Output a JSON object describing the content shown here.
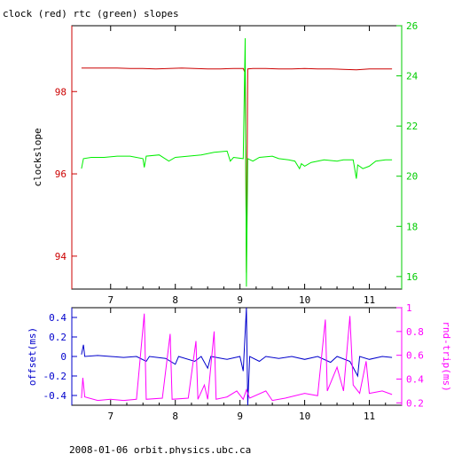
{
  "title": "clock (red) rtc (green) slopes",
  "footer": "2008-01-06 orbit.physics.ubc.ca",
  "colors": {
    "clock": "#cc0000",
    "rtc": "#00ee00",
    "offset": "#0000cc",
    "rndtrip": "#ff00ff",
    "axis": "#000000",
    "left_axis_top": "#cc0000",
    "right_axis_top": "#00cc00",
    "left_axis_bottom": "#0000cc",
    "right_axis_bottom": "#ff00ff"
  },
  "chart_data": [
    {
      "type": "line",
      "title": "clock (red) rtc (green) slopes",
      "xlabel": "",
      "ylabel": "clockslope",
      "y2label": "",
      "xlim": [
        6.4,
        11.5
      ],
      "ylim": [
        93.2,
        99.6
      ],
      "y2lim": [
        15.5,
        26.0
      ],
      "xticks": [
        7,
        8,
        9,
        10,
        11
      ],
      "yticks": [
        94,
        96,
        98
      ],
      "y2ticks": [
        16,
        18,
        20,
        22,
        24,
        26
      ],
      "series": [
        {
          "name": "clock",
          "axis": "left",
          "points": [
            [
              6.55,
              98.57
            ],
            [
              6.7,
              98.57
            ],
            [
              6.9,
              98.57
            ],
            [
              7.1,
              98.57
            ],
            [
              7.3,
              98.56
            ],
            [
              7.5,
              98.56
            ],
            [
              7.7,
              98.55
            ],
            [
              7.9,
              98.56
            ],
            [
              8.1,
              98.57
            ],
            [
              8.3,
              98.56
            ],
            [
              8.5,
              98.55
            ],
            [
              8.7,
              98.55
            ],
            [
              8.9,
              98.56
            ],
            [
              9.05,
              98.56
            ],
            [
              9.08,
              98.45
            ],
            [
              9.1,
              93.6
            ],
            [
              9.12,
              98.55
            ],
            [
              9.2,
              98.56
            ],
            [
              9.4,
              98.56
            ],
            [
              9.6,
              98.55
            ],
            [
              9.8,
              98.55
            ],
            [
              10.0,
              98.56
            ],
            [
              10.2,
              98.55
            ],
            [
              10.4,
              98.55
            ],
            [
              10.6,
              98.54
            ],
            [
              10.8,
              98.53
            ],
            [
              11.0,
              98.55
            ],
            [
              11.2,
              98.55
            ],
            [
              11.35,
              98.55
            ]
          ]
        },
        {
          "name": "rtc",
          "axis": "right",
          "points": [
            [
              6.55,
              20.3
            ],
            [
              6.58,
              20.7
            ],
            [
              6.7,
              20.75
            ],
            [
              6.9,
              20.75
            ],
            [
              7.1,
              20.8
            ],
            [
              7.3,
              20.8
            ],
            [
              7.5,
              20.7
            ],
            [
              7.52,
              20.35
            ],
            [
              7.55,
              20.8
            ],
            [
              7.75,
              20.85
            ],
            [
              7.9,
              20.6
            ],
            [
              8.0,
              20.75
            ],
            [
              8.2,
              20.8
            ],
            [
              8.4,
              20.85
            ],
            [
              8.6,
              20.95
            ],
            [
              8.8,
              21.0
            ],
            [
              8.85,
              20.6
            ],
            [
              8.9,
              20.75
            ],
            [
              9.05,
              20.7
            ],
            [
              9.08,
              25.5
            ],
            [
              9.1,
              15.6
            ],
            [
              9.12,
              20.7
            ],
            [
              9.2,
              20.6
            ],
            [
              9.3,
              20.75
            ],
            [
              9.5,
              20.8
            ],
            [
              9.6,
              20.7
            ],
            [
              9.75,
              20.65
            ],
            [
              9.85,
              20.6
            ],
            [
              9.92,
              20.3
            ],
            [
              9.95,
              20.5
            ],
            [
              10.0,
              20.4
            ],
            [
              10.1,
              20.55
            ],
            [
              10.3,
              20.65
            ],
            [
              10.5,
              20.6
            ],
            [
              10.6,
              20.65
            ],
            [
              10.75,
              20.65
            ],
            [
              10.8,
              19.9
            ],
            [
              10.82,
              20.45
            ],
            [
              10.9,
              20.3
            ],
            [
              11.0,
              20.4
            ],
            [
              11.1,
              20.6
            ],
            [
              11.25,
              20.65
            ],
            [
              11.35,
              20.65
            ]
          ]
        }
      ]
    },
    {
      "type": "line",
      "title": "",
      "xlabel": "",
      "ylabel": "offset(ms)",
      "y2label": "rnd-trip(ms)",
      "xlim": [
        6.4,
        11.5
      ],
      "ylim": [
        -0.5,
        0.5
      ],
      "y2lim": [
        0.18,
        1.0
      ],
      "xticks": [
        7,
        8,
        9,
        10,
        11
      ],
      "yticks": [
        -0.4,
        -0.2,
        0,
        0.2,
        0.4
      ],
      "y2ticks": [
        0.2,
        0.4,
        0.6,
        0.8,
        1
      ],
      "series": [
        {
          "name": "offset",
          "axis": "left",
          "points": [
            [
              6.55,
              0.02
            ],
            [
              6.58,
              0.12
            ],
            [
              6.6,
              0.0
            ],
            [
              6.8,
              0.01
            ],
            [
              7.0,
              0.0
            ],
            [
              7.2,
              -0.01
            ],
            [
              7.4,
              0.0
            ],
            [
              7.55,
              -0.05
            ],
            [
              7.6,
              0.0
            ],
            [
              7.85,
              -0.02
            ],
            [
              8.0,
              -0.08
            ],
            [
              8.05,
              0.0
            ],
            [
              8.3,
              -0.05
            ],
            [
              8.4,
              0.0
            ],
            [
              8.5,
              -0.12
            ],
            [
              8.55,
              0.0
            ],
            [
              8.8,
              -0.03
            ],
            [
              9.0,
              0.0
            ],
            [
              9.05,
              -0.15
            ],
            [
              9.1,
              0.5
            ],
            [
              9.12,
              -0.5
            ],
            [
              9.15,
              0.0
            ],
            [
              9.3,
              -0.05
            ],
            [
              9.4,
              0.0
            ],
            [
              9.6,
              -0.02
            ],
            [
              9.8,
              0.0
            ],
            [
              10.0,
              -0.03
            ],
            [
              10.2,
              0.0
            ],
            [
              10.4,
              -0.06
            ],
            [
              10.5,
              0.0
            ],
            [
              10.7,
              -0.05
            ],
            [
              10.82,
              -0.2
            ],
            [
              10.85,
              0.0
            ],
            [
              11.0,
              -0.03
            ],
            [
              11.2,
              0.0
            ],
            [
              11.35,
              -0.01
            ]
          ]
        },
        {
          "name": "rnd-trip",
          "axis": "right",
          "points": [
            [
              6.55,
              0.24
            ],
            [
              6.57,
              0.41
            ],
            [
              6.6,
              0.25
            ],
            [
              6.8,
              0.22
            ],
            [
              7.0,
              0.23
            ],
            [
              7.2,
              0.22
            ],
            [
              7.4,
              0.23
            ],
            [
              7.52,
              0.95
            ],
            [
              7.55,
              0.23
            ],
            [
              7.8,
              0.24
            ],
            [
              7.92,
              0.78
            ],
            [
              7.95,
              0.23
            ],
            [
              8.2,
              0.24
            ],
            [
              8.32,
              0.72
            ],
            [
              8.35,
              0.23
            ],
            [
              8.45,
              0.35
            ],
            [
              8.5,
              0.23
            ],
            [
              8.6,
              0.8
            ],
            [
              8.63,
              0.23
            ],
            [
              8.8,
              0.25
            ],
            [
              8.95,
              0.3
            ],
            [
              9.05,
              0.23
            ],
            [
              9.1,
              0.31
            ],
            [
              9.15,
              0.24
            ],
            [
              9.4,
              0.3
            ],
            [
              9.5,
              0.22
            ],
            [
              9.7,
              0.24
            ],
            [
              10.0,
              0.28
            ],
            [
              10.2,
              0.26
            ],
            [
              10.32,
              0.9
            ],
            [
              10.35,
              0.3
            ],
            [
              10.5,
              0.5
            ],
            [
              10.6,
              0.3
            ],
            [
              10.7,
              0.93
            ],
            [
              10.75,
              0.35
            ],
            [
              10.85,
              0.28
            ],
            [
              10.95,
              0.55
            ],
            [
              11.0,
              0.28
            ],
            [
              11.2,
              0.3
            ],
            [
              11.35,
              0.27
            ]
          ]
        }
      ]
    }
  ]
}
